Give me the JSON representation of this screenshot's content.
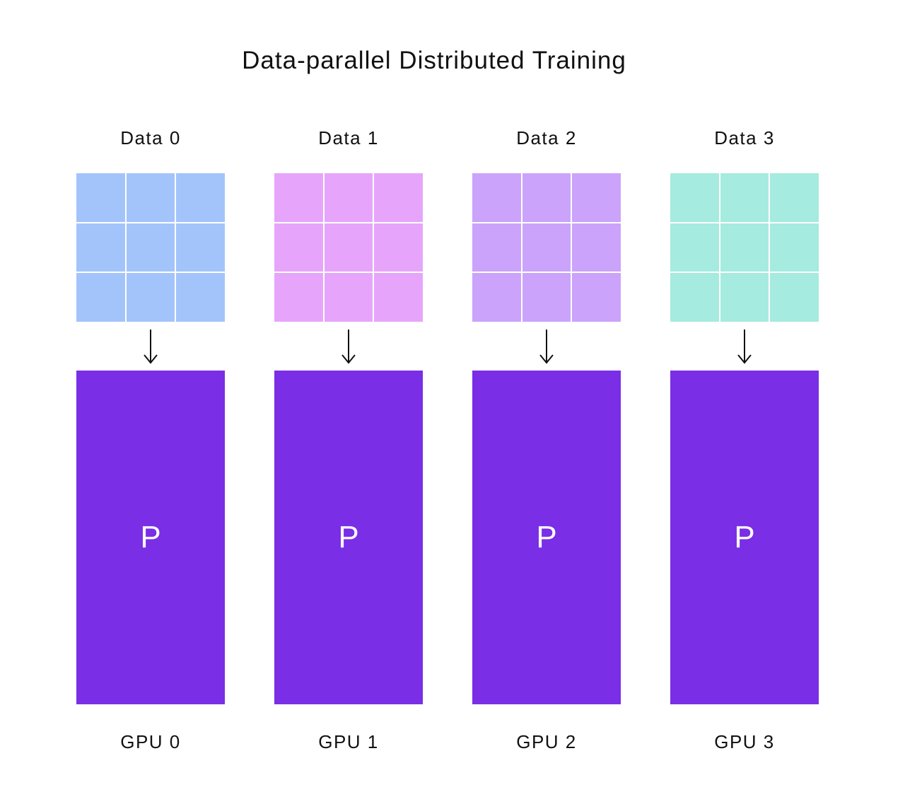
{
  "title": "Data-parallel Distributed Training",
  "colors": {
    "gpu_block": "#7a2ee6",
    "grid_line": "#ffffff",
    "arrow": "#111111"
  },
  "columns": [
    {
      "data_label": "Data 0",
      "data_color": "#a3c4fb",
      "param_label": "P",
      "gpu_label": "GPU 0"
    },
    {
      "data_label": "Data 1",
      "data_color": "#e6a5fb",
      "param_label": "P",
      "gpu_label": "GPU 1"
    },
    {
      "data_label": "Data 2",
      "data_color": "#cba3fb",
      "param_label": "P",
      "gpu_label": "GPU 2"
    },
    {
      "data_label": "Data 3",
      "data_color": "#a6ebdf",
      "param_label": "P",
      "gpu_label": "GPU 3"
    }
  ]
}
